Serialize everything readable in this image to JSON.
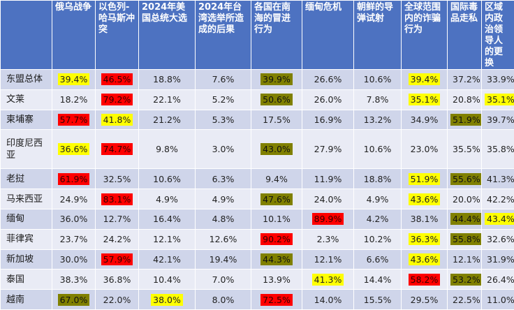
{
  "colors": {
    "header_bg": "#4d72c1",
    "row_odd": "#cfd5ea",
    "row_even": "#e9ebf5",
    "yellow": "#ffff00",
    "red": "#ff0000",
    "olive": "#808000"
  },
  "table": {
    "corner": "",
    "headers": [
      "俄乌战争",
      "以色列-哈马斯冲突",
      "2024年美国总统大选",
      "2024年台湾选举所造成的后果",
      "各国在南海的冒进行为",
      "缅甸危机",
      "朝鲜的导弹试射",
      "全球范围内的诈骗行为",
      "国际毒品走私",
      "区域内政治领导人的更换"
    ],
    "rows": [
      {
        "label": "东盟总体",
        "cells": [
          {
            "v": "39.4%",
            "hl": "yellow"
          },
          {
            "v": "46.5%",
            "hl": "red"
          },
          {
            "v": "18.8%",
            "hl": ""
          },
          {
            "v": "7.6%",
            "hl": ""
          },
          {
            "v": "39.9%",
            "hl": "olive"
          },
          {
            "v": "26.6%",
            "hl": ""
          },
          {
            "v": "10.6%",
            "hl": ""
          },
          {
            "v": "39.4%",
            "hl": "yellow"
          },
          {
            "v": "37.2%",
            "hl": ""
          },
          {
            "v": "33.9%",
            "hl": ""
          }
        ]
      },
      {
        "label": "文莱",
        "cells": [
          {
            "v": "18.2%",
            "hl": ""
          },
          {
            "v": "79.2%",
            "hl": "red"
          },
          {
            "v": "22.1%",
            "hl": ""
          },
          {
            "v": "5.2%",
            "hl": ""
          },
          {
            "v": "50.6%",
            "hl": "olive"
          },
          {
            "v": "26.0%",
            "hl": ""
          },
          {
            "v": "7.8%",
            "hl": ""
          },
          {
            "v": "35.1%",
            "hl": "yellow"
          },
          {
            "v": "20.8%",
            "hl": ""
          },
          {
            "v": "35.1%",
            "hl": "yellow"
          }
        ]
      },
      {
        "label": "柬埔寨",
        "cells": [
          {
            "v": "57.7%",
            "hl": "red"
          },
          {
            "v": "41.8%",
            "hl": "yellow"
          },
          {
            "v": "21.2%",
            "hl": ""
          },
          {
            "v": "5.3%",
            "hl": ""
          },
          {
            "v": "17.5%",
            "hl": ""
          },
          {
            "v": "16.9%",
            "hl": ""
          },
          {
            "v": "13.2%",
            "hl": ""
          },
          {
            "v": "34.9%",
            "hl": ""
          },
          {
            "v": "51.9%",
            "hl": "olive"
          },
          {
            "v": "39.7%",
            "hl": ""
          }
        ]
      },
      {
        "label": "印度尼西亚",
        "cells": [
          {
            "v": "36.6%",
            "hl": "yellow"
          },
          {
            "v": "74.7%",
            "hl": "red"
          },
          {
            "v": "9.8%",
            "hl": ""
          },
          {
            "v": "3.0%",
            "hl": ""
          },
          {
            "v": "43.0%",
            "hl": "olive"
          },
          {
            "v": "27.9%",
            "hl": ""
          },
          {
            "v": "10.6%",
            "hl": ""
          },
          {
            "v": "23.0%",
            "hl": ""
          },
          {
            "v": "35.5%",
            "hl": ""
          },
          {
            "v": "35.8%",
            "hl": ""
          }
        ]
      },
      {
        "label": "老挝",
        "cells": [
          {
            "v": "61.9%",
            "hl": "red"
          },
          {
            "v": "32.5%",
            "hl": ""
          },
          {
            "v": "10.6%",
            "hl": ""
          },
          {
            "v": "6.3%",
            "hl": ""
          },
          {
            "v": "9.4%",
            "hl": ""
          },
          {
            "v": "11.9%",
            "hl": ""
          },
          {
            "v": "18.8%",
            "hl": ""
          },
          {
            "v": "51.9%",
            "hl": "yellow"
          },
          {
            "v": "55.6%",
            "hl": "olive"
          },
          {
            "v": "41.3%",
            "hl": ""
          }
        ]
      },
      {
        "label": "马来西亚",
        "cells": [
          {
            "v": "24.9%",
            "hl": ""
          },
          {
            "v": "83.1%",
            "hl": "red"
          },
          {
            "v": "4.9%",
            "hl": ""
          },
          {
            "v": "4.9%",
            "hl": ""
          },
          {
            "v": "47.6%",
            "hl": "olive"
          },
          {
            "v": "24.0%",
            "hl": ""
          },
          {
            "v": "4.9%",
            "hl": ""
          },
          {
            "v": "43.6%",
            "hl": "yellow"
          },
          {
            "v": "20.0%",
            "hl": ""
          },
          {
            "v": "42.2%",
            "hl": ""
          }
        ]
      },
      {
        "label": "缅甸",
        "cells": [
          {
            "v": "36.0%",
            "hl": ""
          },
          {
            "v": "12.7%",
            "hl": ""
          },
          {
            "v": "16.4%",
            "hl": ""
          },
          {
            "v": "4.8%",
            "hl": ""
          },
          {
            "v": "10.1%",
            "hl": ""
          },
          {
            "v": "89.9%",
            "hl": "red"
          },
          {
            "v": "4.2%",
            "hl": ""
          },
          {
            "v": "38.1%",
            "hl": ""
          },
          {
            "v": "44.4%",
            "hl": "olive"
          },
          {
            "v": "43.4%",
            "hl": "yellow"
          }
        ]
      },
      {
        "label": "菲律宾",
        "cells": [
          {
            "v": "23.7%",
            "hl": ""
          },
          {
            "v": "24.2%",
            "hl": ""
          },
          {
            "v": "12.1%",
            "hl": ""
          },
          {
            "v": "12.6%",
            "hl": ""
          },
          {
            "v": "90.2%",
            "hl": "red"
          },
          {
            "v": "2.3%",
            "hl": ""
          },
          {
            "v": "10.2%",
            "hl": ""
          },
          {
            "v": "36.3%",
            "hl": "yellow"
          },
          {
            "v": "55.8%",
            "hl": "olive"
          },
          {
            "v": "32.6%",
            "hl": ""
          }
        ]
      },
      {
        "label": "新加坡",
        "cells": [
          {
            "v": "30.0%",
            "hl": ""
          },
          {
            "v": "57.9%",
            "hl": "red"
          },
          {
            "v": "42.1%",
            "hl": ""
          },
          {
            "v": "19.4%",
            "hl": ""
          },
          {
            "v": "44.3%",
            "hl": "olive"
          },
          {
            "v": "12.1%",
            "hl": ""
          },
          {
            "v": "6.6%",
            "hl": ""
          },
          {
            "v": "43.6%",
            "hl": "yellow"
          },
          {
            "v": "12.1%",
            "hl": ""
          },
          {
            "v": "31.9%",
            "hl": ""
          }
        ]
      },
      {
        "label": "泰国",
        "cells": [
          {
            "v": "38.3%",
            "hl": ""
          },
          {
            "v": "36.8%",
            "hl": ""
          },
          {
            "v": "10.4%",
            "hl": ""
          },
          {
            "v": "7.0%",
            "hl": ""
          },
          {
            "v": "13.9%",
            "hl": ""
          },
          {
            "v": "41.3%",
            "hl": "yellow"
          },
          {
            "v": "14.4%",
            "hl": ""
          },
          {
            "v": "58.2%",
            "hl": "red"
          },
          {
            "v": "53.2%",
            "hl": "olive"
          },
          {
            "v": "26.4%",
            "hl": ""
          }
        ]
      },
      {
        "label": "越南",
        "cells": [
          {
            "v": "67.0%",
            "hl": "olive"
          },
          {
            "v": "22.0%",
            "hl": ""
          },
          {
            "v": "38.0%",
            "hl": "yellow"
          },
          {
            "v": "8.0%",
            "hl": ""
          },
          {
            "v": "72.5%",
            "hl": "red"
          },
          {
            "v": "14.0%",
            "hl": ""
          },
          {
            "v": "15.5%",
            "hl": ""
          },
          {
            "v": "29.5%",
            "hl": ""
          },
          {
            "v": "22.5%",
            "hl": ""
          },
          {
            "v": "11.0%",
            "hl": ""
          }
        ]
      }
    ]
  }
}
